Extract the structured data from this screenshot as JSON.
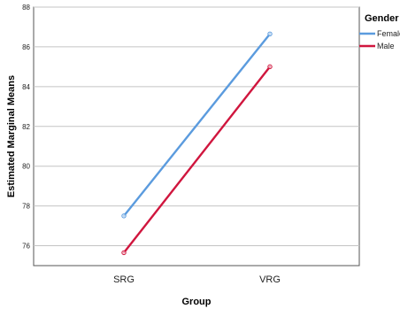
{
  "chart_data": {
    "type": "line",
    "title": "",
    "xlabel": "Group",
    "ylabel": "Estimated Marginal Means",
    "categories": [
      "SRG",
      "VRG"
    ],
    "ylim": [
      75,
      88
    ],
    "yticks": [
      76,
      78,
      80,
      82,
      84,
      86,
      88
    ],
    "grid": true,
    "legend": {
      "title": "Gender",
      "placement": "top-right"
    },
    "series": [
      {
        "name": "Female",
        "color": "#5b9bde",
        "values": [
          77.5,
          86.65
        ]
      },
      {
        "name": "Male",
        "color": "#d0163e",
        "values": [
          75.65,
          85.0
        ]
      }
    ]
  }
}
